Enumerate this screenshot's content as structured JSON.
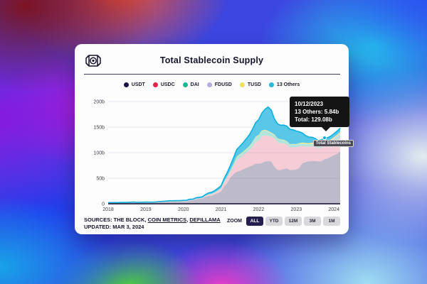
{
  "header": {
    "title": "Total Stablecoin Supply"
  },
  "tooltip": {
    "date": "10/12/2023",
    "rows": [
      "13 Others: 5.84b",
      "Total: 129.08b"
    ]
  },
  "series_label": "Total Stablecoins",
  "footer": {
    "sources": {
      "prefix": "SOURCES: THE BLOCK, ",
      "link1": "COIN METRICS",
      "sep": ", ",
      "link2": "DEFILLAMA"
    },
    "updated": "UPDATED: MAR 3, 2024",
    "zoom": {
      "label": "ZOOM",
      "buttons": [
        "ALL",
        "YTD",
        "12M",
        "3M",
        "1M"
      ],
      "active": "ALL"
    }
  },
  "chart_data": {
    "type": "area",
    "stacked": true,
    "title": "Total Stablecoin Supply",
    "interval": "monthly",
    "x_start": "2018-01",
    "x_end": "2024-03",
    "x_label_years": [
      "2018",
      "2019",
      "2020",
      "2021",
      "2022",
      "2023",
      "2024"
    ],
    "y_ticks": [
      {
        "v": 0,
        "label": "0"
      },
      {
        "v": 50,
        "label": "50b"
      },
      {
        "v": 100,
        "label": "100b"
      },
      {
        "v": 150,
        "label": "150b"
      },
      {
        "v": 200,
        "label": "200b"
      }
    ],
    "ylim": [
      0,
      207
    ],
    "grid": "horizontal",
    "legend_position": "top",
    "axis_color": "#2b2745",
    "grid_color": "#e7e7ee",
    "line_color": "#0fb0dd",
    "marker_index": 69,
    "marker_date": "10/12/2023",
    "series": [
      {
        "name": "USDT",
        "color": "#191245",
        "fill": "rgba(25,18,69,0.28)",
        "values": [
          2.3,
          2.2,
          2.3,
          2.2,
          2.4,
          2.5,
          2.4,
          2.7,
          2.8,
          2.0,
          1.8,
          1.9,
          2.0,
          2.0,
          2.0,
          2.1,
          2.8,
          3.1,
          3.5,
          4.0,
          4.0,
          4.1,
          4.1,
          4.1,
          4.6,
          4.6,
          6.4,
          6.4,
          8.8,
          9.2,
          10.0,
          13.4,
          15.3,
          15.7,
          18.4,
          21.0,
          24.0,
          34.0,
          40.5,
          51.0,
          58.0,
          62.5,
          64.0,
          67.0,
          70.0,
          72.5,
          75.0,
          78.3,
          78.4,
          79.5,
          82.7,
          83.2,
          83.0,
          72.5,
          66.0,
          66.0,
          68.0,
          69.0,
          65.5,
          66.2,
          66.9,
          70.5,
          79.5,
          81.5,
          83.0,
          83.5,
          83.8,
          82.9,
          83.2,
          87.0,
          88.5,
          91.7,
          94.7,
          97.5,
          102.0
        ]
      },
      {
        "name": "USDC",
        "color": "#e02348",
        "fill": "rgba(224,35,72,0.22)",
        "values": [
          0,
          0,
          0,
          0,
          0,
          0,
          0,
          0,
          0.1,
          0.15,
          0.2,
          0.26,
          0.3,
          0.25,
          0.25,
          0.3,
          0.3,
          0.35,
          0.4,
          0.45,
          0.5,
          0.5,
          0.5,
          0.52,
          0.52,
          0.6,
          0.7,
          0.73,
          1.0,
          1.1,
          1.1,
          1.4,
          1.9,
          2.8,
          2.9,
          4.0,
          5.2,
          8.0,
          10.8,
          11.6,
          14.5,
          23.0,
          26.0,
          27.5,
          29.5,
          32.5,
          36.5,
          42.5,
          45.5,
          52.5,
          51.0,
          49.5,
          48.5,
          55.5,
          55.0,
          52.5,
          50.0,
          46.5,
          44.5,
          44.5,
          43.5,
          42.0,
          33.0,
          30.5,
          29.0,
          28.5,
          27.5,
          26.0,
          26.0,
          25.4,
          24.5,
          24.5,
          26.0,
          27.5,
          28.5
        ]
      },
      {
        "name": "DAI",
        "color": "#16b896",
        "fill": "rgba(22,184,150,0.32)",
        "values": [
          0,
          0,
          0,
          0,
          0,
          0,
          0,
          0.05,
          0.06,
          0.08,
          0.08,
          0.07,
          0.08,
          0.08,
          0.09,
          0.09,
          0.1,
          0.1,
          0.1,
          0.1,
          0.1,
          0.1,
          0.1,
          0.1,
          0.12,
          0.13,
          0.1,
          0.1,
          0.12,
          0.13,
          0.25,
          0.4,
          0.9,
          0.9,
          1.0,
          1.1,
          1.3,
          1.8,
          2.7,
          3.5,
          4.3,
          4.9,
          5.3,
          5.6,
          6.3,
          6.5,
          8.0,
          9.0,
          9.3,
          9.8,
          9.9,
          8.8,
          6.8,
          6.5,
          6.3,
          6.8,
          6.4,
          6.0,
          5.8,
          5.7,
          5.5,
          5.2,
          5.2,
          4.8,
          4.6,
          4.5,
          4.3,
          3.9,
          5.3,
          5.34,
          5.3,
          5.3,
          5.0,
          4.8,
          4.6
        ]
      },
      {
        "name": "FDUSD",
        "color": "#b3aede",
        "fill": "rgba(179,174,222,0.55)",
        "values": [
          0,
          0,
          0,
          0,
          0,
          0,
          0,
          0,
          0,
          0,
          0,
          0,
          0,
          0,
          0,
          0,
          0,
          0,
          0,
          0,
          0,
          0,
          0,
          0,
          0,
          0,
          0,
          0,
          0,
          0,
          0,
          0,
          0,
          0,
          0,
          0,
          0,
          0,
          0,
          0,
          0,
          0,
          0,
          0,
          0,
          0,
          0,
          0,
          0,
          0,
          0,
          0,
          0,
          0,
          0,
          0,
          0,
          0,
          0,
          0,
          0,
          0,
          0,
          0,
          0,
          0,
          0.3,
          0.45,
          0.8,
          2.4,
          2.0,
          1.9,
          2.5,
          3.0,
          3.5
        ]
      },
      {
        "name": "TUSD",
        "color": "#ece25b",
        "fill": "rgba(236,226,91,0.65)",
        "values": [
          0,
          0.05,
          0.08,
          0.1,
          0.1,
          0.1,
          0.1,
          0.1,
          0.15,
          0.2,
          0.2,
          0.2,
          0.2,
          0.2,
          0.2,
          0.2,
          0.2,
          0.2,
          0.2,
          0.2,
          0.2,
          0.2,
          0.2,
          0.2,
          0.15,
          0.15,
          0.15,
          0.15,
          0.15,
          0.15,
          0.2,
          0.3,
          0.4,
          0.3,
          0.3,
          0.3,
          0.3,
          0.35,
          0.35,
          0.35,
          1.5,
          1.6,
          1.5,
          1.4,
          1.3,
          1.2,
          1.2,
          1.3,
          1.4,
          1.4,
          1.3,
          1.3,
          1.2,
          1.2,
          1.1,
          1.0,
          1.0,
          0.9,
          0.8,
          0.8,
          0.9,
          1.1,
          2.0,
          2.1,
          2.0,
          3.1,
          2.9,
          2.8,
          3.4,
          3.1,
          2.6,
          2.4,
          2.2,
          2.0,
          1.9
        ]
      },
      {
        "name": "13 Others",
        "color": "#27b8dc",
        "fill": "rgba(66,191,229,0.88)",
        "values": [
          0.1,
          0.1,
          0.1,
          0.1,
          0.15,
          0.2,
          0.2,
          0.25,
          0.3,
          0.5,
          0.6,
          0.6,
          0.6,
          0.6,
          0.6,
          0.6,
          0.7,
          0.8,
          0.8,
          0.9,
          1.0,
          1.1,
          1.2,
          1.3,
          1.3,
          1.4,
          1.5,
          1.6,
          1.8,
          2.0,
          2.2,
          2.5,
          2.8,
          3.0,
          3.3,
          3.7,
          4.2,
          5.5,
          7.0,
          9.0,
          12.0,
          14.0,
          15.5,
          17.5,
          19.5,
          22.0,
          24.5,
          27.5,
          30.0,
          34.0,
          40.0,
          46.5,
          44.0,
          30.5,
          28.0,
          27.5,
          28.5,
          29.5,
          29.0,
          27.5,
          25.5,
          22.0,
          18.5,
          14.5,
          12.0,
          10.5,
          9.0,
          7.5,
          6.5,
          5.84,
          6.2,
          6.5,
          6.8,
          7.2,
          7.6
        ]
      }
    ]
  }
}
